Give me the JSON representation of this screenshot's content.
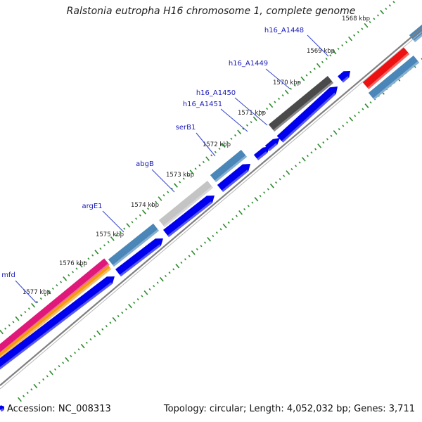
{
  "title": "Ralstonia eutropha H16 chromosome 1, complete genome",
  "footer": {
    "accession": "Accession: NC_008313",
    "summary": "Topology: circular; Length: 4,052,032 bp; Genes: 3,711"
  },
  "colors": {
    "tick": "#2a8a2a",
    "backbone": "#808080",
    "label": "#1a1ab8",
    "callout": "#3344cc",
    "cds": "#0000ee",
    "gene_steel": "#4a86b8",
    "gene_dark": "#4a4a4a",
    "gene_silver": "#c4c4c4",
    "gene_red": "#ee1111",
    "gene_magenta": "#e0187a",
    "gene_orange": "#f49a10"
  },
  "kbp_ticks": [
    {
      "label": "1568 kbp"
    },
    {
      "label": "1569 kbp"
    },
    {
      "label": "1570 kbp"
    },
    {
      "label": "1571 kbp"
    },
    {
      "label": "1572 kbp"
    },
    {
      "label": "1573 kbp"
    },
    {
      "label": "1574 kbp"
    },
    {
      "label": "1575 kbp"
    },
    {
      "label": "1576 kbp"
    },
    {
      "label": "1577 kbp"
    }
  ],
  "genes": [
    {
      "label": "h16_A1448"
    },
    {
      "label": "h16_A1449"
    },
    {
      "label": "h16_A1450"
    },
    {
      "label": "h16_A1451"
    },
    {
      "label": "serB1"
    },
    {
      "label": "abgB"
    },
    {
      "label": "argE1"
    },
    {
      "label": "mfd"
    }
  ]
}
